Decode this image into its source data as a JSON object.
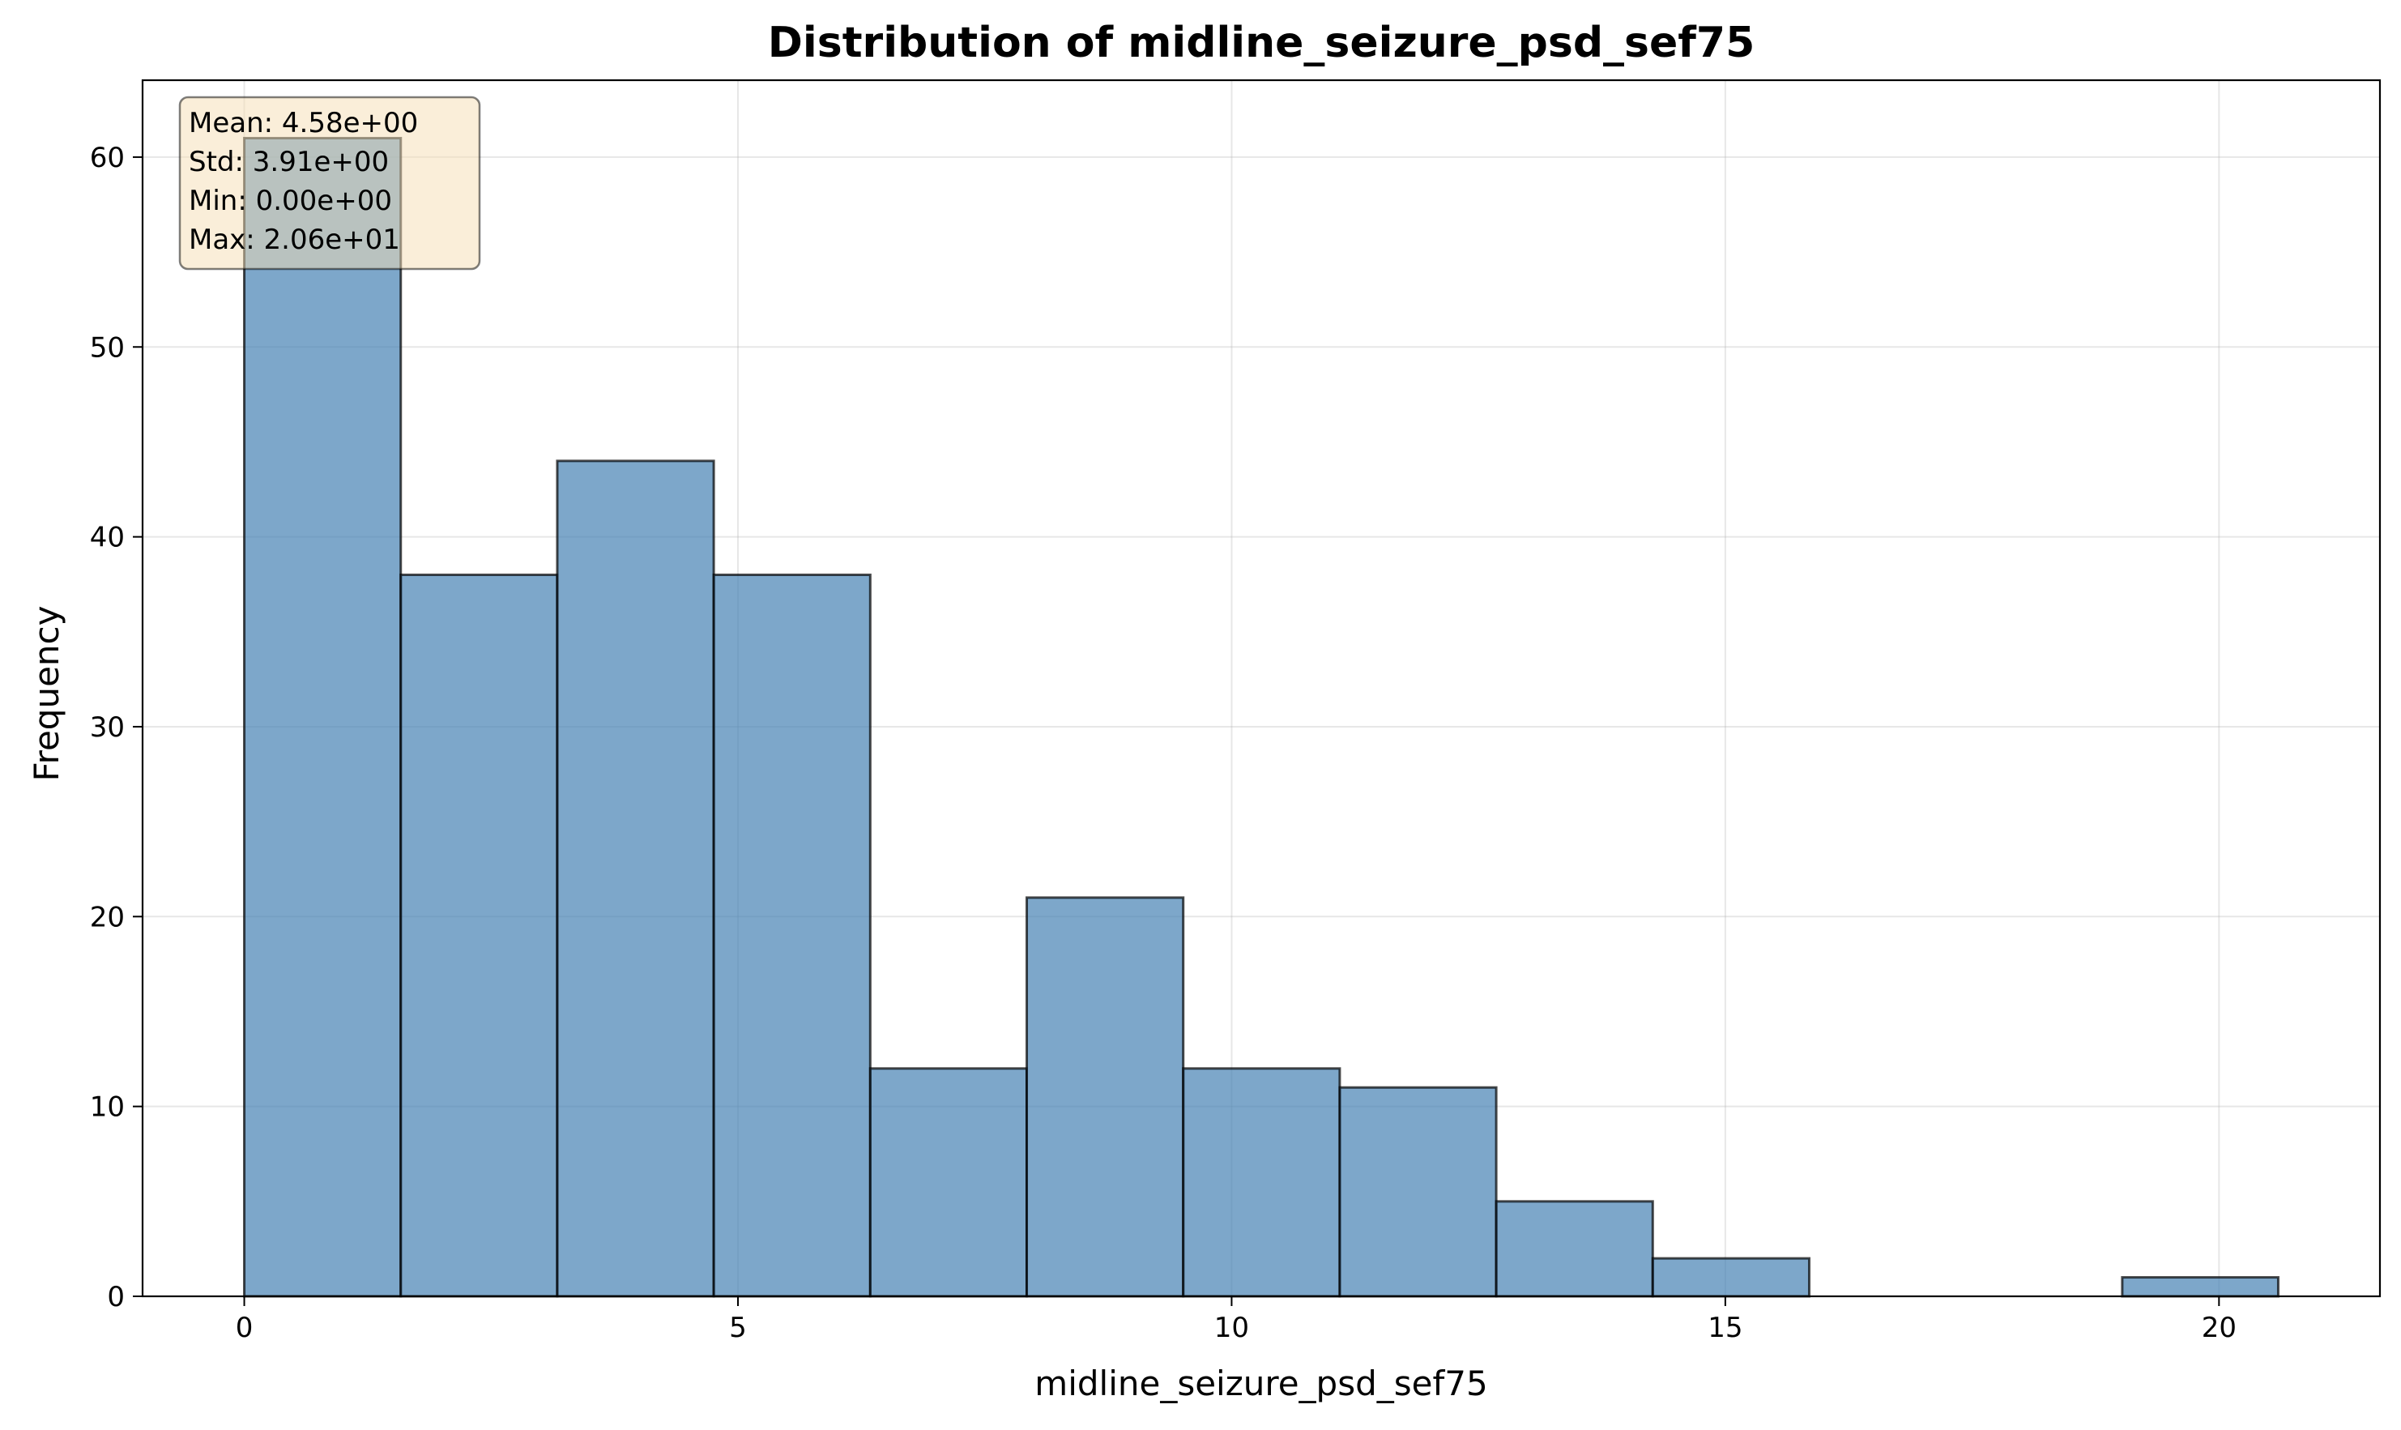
{
  "chart_data": {
    "type": "histogram",
    "title": "Distribution of midline_seizure_psd_sef75",
    "xlabel": "midline_seizure_psd_sef75",
    "ylabel": "Frequency",
    "xlim": [
      -1.03,
      21.63
    ],
    "ylim": [
      0,
      64.05
    ],
    "xticks": [
      0,
      5,
      10,
      15,
      20
    ],
    "yticks": [
      0,
      10,
      20,
      30,
      40,
      50,
      60
    ],
    "bins": [
      {
        "x0": 0.0,
        "x1": 1.585,
        "count": 61
      },
      {
        "x0": 1.585,
        "x1": 3.17,
        "count": 38
      },
      {
        "x0": 3.17,
        "x1": 4.755,
        "count": 44
      },
      {
        "x0": 4.755,
        "x1": 6.34,
        "count": 38
      },
      {
        "x0": 6.34,
        "x1": 7.925,
        "count": 12
      },
      {
        "x0": 7.925,
        "x1": 9.51,
        "count": 21
      },
      {
        "x0": 9.51,
        "x1": 11.095,
        "count": 12
      },
      {
        "x0": 11.095,
        "x1": 12.68,
        "count": 11
      },
      {
        "x0": 12.68,
        "x1": 14.265,
        "count": 5
      },
      {
        "x0": 14.265,
        "x1": 15.85,
        "count": 2
      },
      {
        "x0": 15.85,
        "x1": 17.435,
        "count": 0
      },
      {
        "x0": 17.435,
        "x1": 19.02,
        "count": 0
      },
      {
        "x0": 19.02,
        "x1": 20.6,
        "count": 1
      }
    ],
    "bar_color": "#4682b4",
    "grid": true,
    "stats_box": {
      "lines": [
        "Mean: 4.58e+00",
        "Std: 3.91e+00",
        "Min: 0.00e+00",
        "Max: 2.06e+01"
      ],
      "placement": "top-left"
    }
  }
}
